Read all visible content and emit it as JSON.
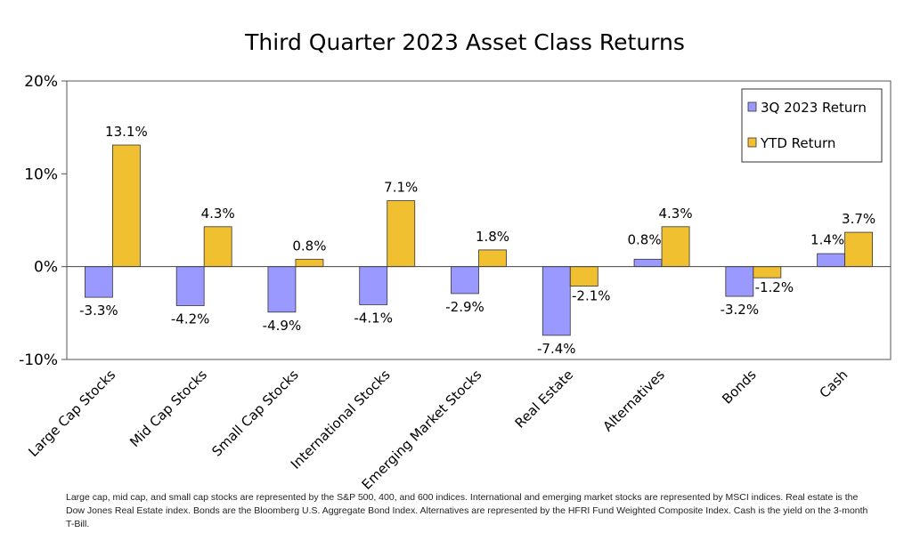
{
  "chart_data": {
    "type": "bar",
    "title": "Third Quarter 2023 Asset Class Returns",
    "categories": [
      "Large Cap Stocks",
      "Mid Cap Stocks",
      "Small Cap Stocks",
      "International Stocks",
      "Emerging Market Stocks",
      "Real Estate",
      "Alternatives",
      "Bonds",
      "Cash"
    ],
    "series": [
      {
        "name": "3Q 2023 Return",
        "color": "#9999ff",
        "values": [
          -3.3,
          -4.2,
          -4.9,
          -4.1,
          -2.9,
          -7.4,
          0.8,
          -3.2,
          1.4
        ],
        "labels": [
          "-3.3%",
          "-4.2%",
          "-4.9%",
          "-4.1%",
          "-2.9%",
          "-7.4%",
          "0.8%",
          "-3.2%",
          "1.4%"
        ]
      },
      {
        "name": "YTD Return",
        "color": "#f0c030",
        "values": [
          13.1,
          4.3,
          0.8,
          7.1,
          1.8,
          -2.1,
          4.3,
          -1.2,
          3.7
        ],
        "labels": [
          "13.1%",
          "4.3%",
          "0.8%",
          "7.1%",
          "1.8%",
          "-2.1%",
          "4.3%",
          "-1.2%",
          "3.7%"
        ]
      }
    ],
    "ylim": [
      -10,
      20
    ],
    "yticks": [
      {
        "value": 20,
        "label": "20%"
      },
      {
        "value": 10,
        "label": "10%"
      },
      {
        "value": 0,
        "label": "0%"
      },
      {
        "value": -10,
        "label": "-10%"
      }
    ],
    "xlabel": "",
    "ylabel": "",
    "legend_position": "top-right",
    "grid": false
  },
  "footnote": "Large cap, mid cap, and small cap stocks are represented by the S&P 500, 400, and 600 indices.  International and emerging market stocks are represented by MSCI indices.  Real estate is the Dow Jones Real Estate index.  Bonds are the Bloomberg U.S. Aggregate Bond Index.  Alternatives are represented by the HFRI Fund Weighted Composite Index.  Cash is the yield on the 3-month T-Bill."
}
